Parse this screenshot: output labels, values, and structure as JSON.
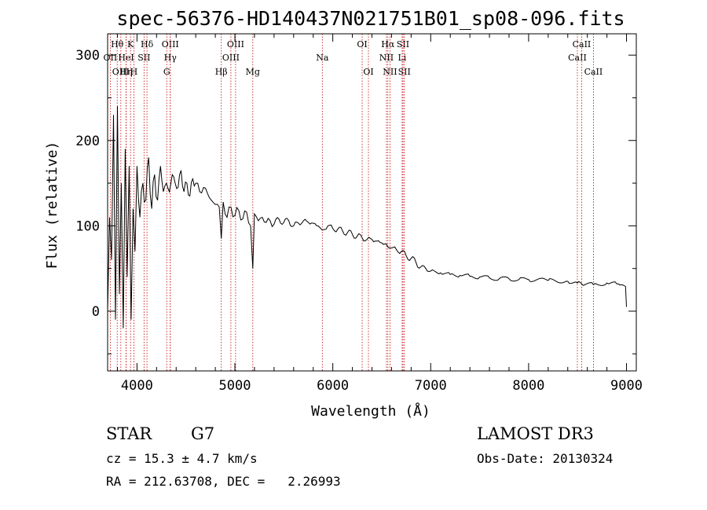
{
  "chart_data": {
    "type": "line",
    "title": "spec-56376-HD140437N021751B01_sp08-096.fits",
    "xlabel": "Wavelength (Å)",
    "ylabel": "Flux (relative)",
    "xlim": [
      3700,
      9100
    ],
    "ylim": [
      -70,
      325
    ],
    "xticks": [
      4000,
      5000,
      6000,
      7000,
      8000,
      9000
    ],
    "yticks": [
      0,
      100,
      200,
      300
    ],
    "series": [
      {
        "name": "spectrum",
        "x": [
          3700,
          3720,
          3740,
          3760,
          3780,
          3800,
          3820,
          3840,
          3860,
          3880,
          3900,
          3920,
          3940,
          3960,
          3980,
          4000,
          4030,
          4060,
          4090,
          4120,
          4150,
          4180,
          4210,
          4240,
          4270,
          4300,
          4330,
          4360,
          4390,
          4420,
          4450,
          4480,
          4510,
          4540,
          4570,
          4600,
          4640,
          4680,
          4720,
          4760,
          4800,
          4840,
          4861,
          4880,
          4920,
          4960,
          5000,
          5040,
          5080,
          5120,
          5160,
          5183,
          5200,
          5240,
          5280,
          5320,
          5360,
          5400,
          5450,
          5500,
          5550,
          5600,
          5650,
          5700,
          5750,
          5800,
          5850,
          5893,
          5950,
          6000,
          6050,
          6100,
          6150,
          6200,
          6250,
          6300,
          6350,
          6400,
          6450,
          6500,
          6563,
          6600,
          6650,
          6700,
          6750,
          6800,
          6850,
          6900,
          6950,
          7000,
          7100,
          7200,
          7300,
          7400,
          7500,
          7600,
          7700,
          7800,
          7900,
          8000,
          8200,
          8400,
          8498,
          8542,
          8662,
          8800,
          8900,
          8950,
          8990,
          9000
        ],
        "y": [
          0,
          110,
          60,
          230,
          -10,
          240,
          20,
          150,
          -20,
          190,
          40,
          170,
          -10,
          120,
          70,
          170,
          110,
          150,
          130,
          180,
          120,
          160,
          130,
          170,
          140,
          150,
          140,
          160,
          150,
          145,
          165,
          140,
          150,
          135,
          155,
          150,
          140,
          145,
          138,
          130,
          125,
          122,
          85,
          128,
          110,
          122,
          112,
          118,
          108,
          116,
          100,
          50,
          114,
          106,
          110,
          104,
          106,
          102,
          108,
          104,
          106,
          100,
          103,
          106,
          104,
          103,
          100,
          95,
          100,
          97,
          96,
          94,
          92,
          90,
          88,
          86,
          84,
          84,
          82,
          80,
          75,
          74,
          72,
          70,
          65,
          62,
          57,
          52,
          50,
          47,
          45,
          43,
          42,
          41,
          40,
          39,
          38,
          38,
          37,
          37,
          36,
          35,
          33,
          32,
          31,
          33,
          32,
          31,
          29,
          5
        ]
      }
    ],
    "spectral_lines": [
      {
        "label": "OII",
        "x": 3727,
        "row": 1
      },
      {
        "label": "Hθ",
        "x": 3798,
        "row": 0
      },
      {
        "label": "OIII",
        "x": 3835,
        "row": 2
      },
      {
        "label": "HeI",
        "x": 3889,
        "row": 1
      },
      {
        "label": "Hη",
        "x": 3890,
        "row": 2
      },
      {
        "label": "K",
        "x": 3934,
        "row": 0
      },
      {
        "label": "H",
        "x": 3968,
        "row": 2
      },
      {
        "label": "SII",
        "x": 4072,
        "row": 1
      },
      {
        "label": "Hδ",
        "x": 4102,
        "row": 0
      },
      {
        "label": "G",
        "x": 4304,
        "row": 2
      },
      {
        "label": "OIII",
        "x": 4340,
        "row": 0
      },
      {
        "label": "Hγ",
        "x": 4340,
        "row": 1
      },
      {
        "label": "Hβ",
        "x": 4861,
        "row": 2
      },
      {
        "label": "OIII",
        "x": 4959,
        "row": 1
      },
      {
        "label": "OIII",
        "x": 5007,
        "row": 0
      },
      {
        "label": "Mg",
        "x": 5183,
        "row": 2
      },
      {
        "label": "Na",
        "x": 5893,
        "row": 1
      },
      {
        "label": "OI",
        "x": 6300,
        "row": 0
      },
      {
        "label": "OI",
        "x": 6364,
        "row": 2
      },
      {
        "label": "NII",
        "x": 6548,
        "row": 1
      },
      {
        "label": "Hα",
        "x": 6563,
        "row": 0
      },
      {
        "label": "NII",
        "x": 6584,
        "row": 2
      },
      {
        "label": "SII",
        "x": 6717,
        "row": 0
      },
      {
        "label": "Li",
        "x": 6708,
        "row": 1
      },
      {
        "label": "SII",
        "x": 6731,
        "row": 2
      },
      {
        "label": "CaII",
        "x": 8498,
        "row": 1
      },
      {
        "label": "CaII",
        "x": 8542,
        "row": 0
      },
      {
        "label": "CaII",
        "x": 8662,
        "row": 2
      }
    ]
  },
  "info": {
    "class_label": "STAR",
    "subclass": "G7",
    "survey": "LAMOST DR3",
    "cz_text": "cz = 15.3 ± 4.7 km/s",
    "obs_date_text": "Obs-Date: 20130324",
    "radec_text": "RA = 212.63708, DEC =   2.26993"
  }
}
